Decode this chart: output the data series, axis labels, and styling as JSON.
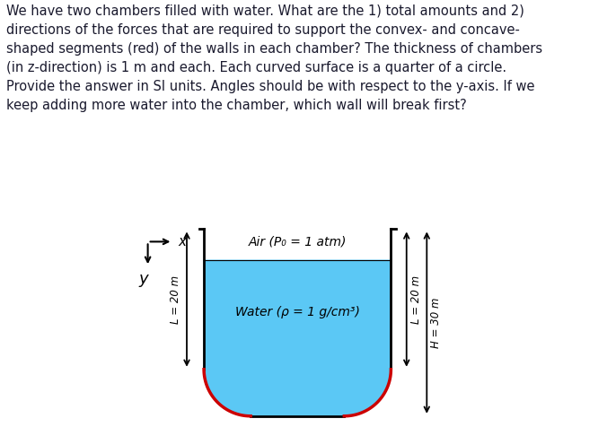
{
  "title_text": "We have two chambers filled with water. What are the 1) total amounts and 2)\ndirections of the forces that are required to support the convex- and concave-\nshaped segments (red) of the walls in each chamber? The thickness of chambers\n(in z-direction) is 1 m and each. Each curved surface is a quarter of a circle.\nProvide the answer in SI units. Angles should be with respect to the y-axis. If we\nkeep adding more water into the chamber, which wall will break first?",
  "water_color": "#5bc8f5",
  "wall_color": "#000000",
  "red_color": "#cc0000",
  "air_label": "Air (P₀ = 1 atm)",
  "water_label": "Water (ρ = 1 g/cm³)",
  "left_dim_label": "L = 20 m",
  "right_dim_label1": "L = 20 m",
  "right_dim_label2": "H = 30 m",
  "bg_color": "#ffffff",
  "text_color": "#1a1a2e",
  "dim_color": "#000000"
}
